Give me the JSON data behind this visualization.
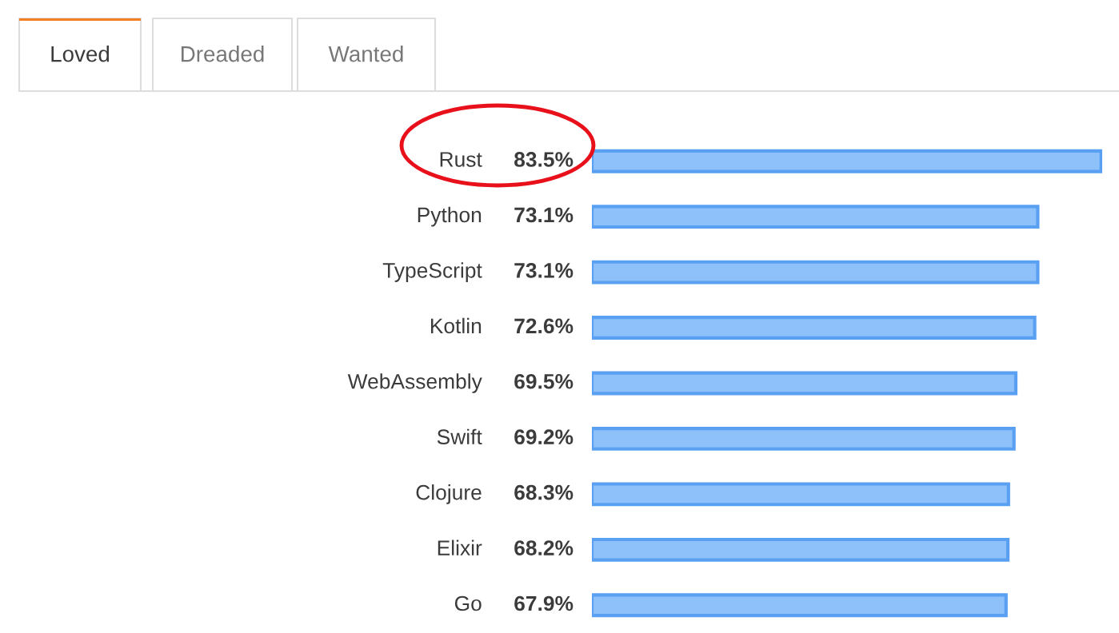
{
  "chart_data": {
    "type": "bar",
    "orientation": "horizontal",
    "categories": [
      "Rust",
      "Python",
      "TypeScript",
      "Kotlin",
      "WebAssembly",
      "Swift",
      "Clojure",
      "Elixir",
      "Go"
    ],
    "values": [
      83.5,
      73.1,
      73.1,
      72.6,
      69.5,
      69.2,
      68.3,
      68.2,
      67.9
    ],
    "value_labels": [
      "83.5%",
      "73.1%",
      "73.1%",
      "72.6%",
      "69.5%",
      "69.2%",
      "68.3%",
      "68.2%",
      "67.9%"
    ],
    "color": "#8ec0fa",
    "annotations": [
      "Loved",
      "Dreaded",
      "Wanted"
    ]
  }
}
